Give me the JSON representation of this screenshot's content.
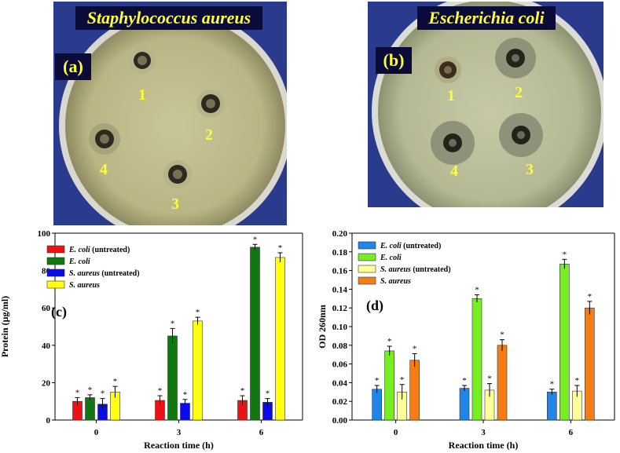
{
  "photos": [
    {
      "title": "Staphylococcus aureus",
      "label": "(a)",
      "well_labels": [
        "1",
        "2",
        "3",
        "4"
      ]
    },
    {
      "title": "Escherichia coli",
      "label": "(b)",
      "well_labels": [
        "1",
        "2",
        "3",
        "4"
      ]
    }
  ],
  "chart_data": [
    {
      "type": "bar",
      "panel_label": "(c)",
      "xlabel": "Reaction time (h)",
      "ylabel": "Protein (µg/ml)",
      "categories": [
        "0",
        "3",
        "6"
      ],
      "ylim": [
        0,
        100
      ],
      "yticks": [
        0,
        20,
        40,
        60,
        80,
        100
      ],
      "legend_position": "top-left",
      "series": [
        {
          "name": "E. coli (untreated)",
          "name_italic": "E. coli",
          "name_rest": " (untreated)",
          "color": "#ee1111",
          "values": [
            10,
            10.5,
            10.5
          ],
          "errors": [
            2,
            2.5,
            2.5
          ]
        },
        {
          "name": "E. coli",
          "name_italic": "E. coli",
          "name_rest": "",
          "color": "#117711",
          "values": [
            12,
            45,
            92.5
          ],
          "errors": [
            1.5,
            4,
            1.5
          ]
        },
        {
          "name": "S. aureus (untreated)",
          "name_italic": "S. aureus",
          "name_rest": " (untreated)",
          "color": "#0a0aee",
          "values": [
            8.5,
            9,
            9.5
          ],
          "errors": [
            3,
            2,
            2
          ]
        },
        {
          "name": "S. aureus",
          "name_italic": "S. aureus",
          "name_rest": "",
          "color": "#ffff11",
          "values": [
            15,
            53,
            87
          ],
          "errors": [
            3,
            2,
            2.5
          ]
        }
      ],
      "annotation_marker": "*"
    },
    {
      "type": "bar",
      "panel_label": "(d)",
      "xlabel": "Reaction time (h)",
      "ylabel": "OD 260nm",
      "categories": [
        "0",
        "3",
        "6"
      ],
      "ylim": [
        0,
        0.2
      ],
      "yticks": [
        "0.00",
        "0.02",
        "0.04",
        "0.06",
        "0.08",
        "0.10",
        "0.12",
        "0.14",
        "0.16",
        "0.18",
        "0.20"
      ],
      "legend_position": "top-left",
      "series": [
        {
          "name": "E. coli (untreated)",
          "name_italic": "E. coli",
          "name_rest": " (untreated)",
          "color": "#1f86e8",
          "values": [
            0.033,
            0.034,
            0.03
          ],
          "errors": [
            0.004,
            0.003,
            0.003
          ]
        },
        {
          "name": "E. coli",
          "name_italic": "E. coli",
          "name_rest": "",
          "color": "#77ee22",
          "values": [
            0.074,
            0.13,
            0.167
          ],
          "errors": [
            0.005,
            0.004,
            0.005
          ]
        },
        {
          "name": "S. aureus (untreated)",
          "name_italic": "S. aureus",
          "name_rest": " (untreated)",
          "color": "#ffff99",
          "values": [
            0.03,
            0.032,
            0.031
          ],
          "errors": [
            0.008,
            0.007,
            0.006
          ]
        },
        {
          "name": "S. aureus",
          "name_italic": "S. aureus",
          "name_rest": "",
          "color": "#f47d16",
          "values": [
            0.064,
            0.08,
            0.12
          ],
          "errors": [
            0.007,
            0.006,
            0.007
          ]
        }
      ],
      "annotation_marker": "*"
    }
  ]
}
